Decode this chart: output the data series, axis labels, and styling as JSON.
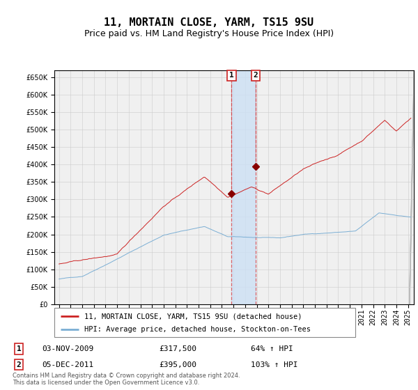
{
  "title": "11, MORTAIN CLOSE, YARM, TS15 9SU",
  "subtitle": "Price paid vs. HM Land Registry's House Price Index (HPI)",
  "legend_line1": "11, MORTAIN CLOSE, YARM, TS15 9SU (detached house)",
  "legend_line2": "HPI: Average price, detached house, Stockton-on-Tees",
  "sale1_date": "03-NOV-2009",
  "sale1_price": "£317,500",
  "sale1_hpi": "64% ↑ HPI",
  "sale1_year": 2009.84,
  "sale1_value": 317500,
  "sale2_date": "05-DEC-2011",
  "sale2_price": "£395,000",
  "sale2_hpi": "103% ↑ HPI",
  "sale2_year": 2011.92,
  "sale2_value": 395000,
  "hpi_color": "#7aaed4",
  "price_color": "#cc2222",
  "marker_color": "#880000",
  "background_color": "#ffffff",
  "grid_color": "#cccccc",
  "axis_bg_color": "#f0f0f0",
  "shade_color": "#cce0f5",
  "footer": "Contains HM Land Registry data © Crown copyright and database right 2024.\nThis data is licensed under the Open Government Licence v3.0.",
  "ylim": [
    0,
    670000
  ],
  "yticks": [
    0,
    50000,
    100000,
    150000,
    200000,
    250000,
    300000,
    350000,
    400000,
    450000,
    500000,
    550000,
    600000,
    650000
  ],
  "xstart": 1995,
  "xend": 2025,
  "title_fontsize": 11,
  "subtitle_fontsize": 9,
  "tick_fontsize": 7
}
